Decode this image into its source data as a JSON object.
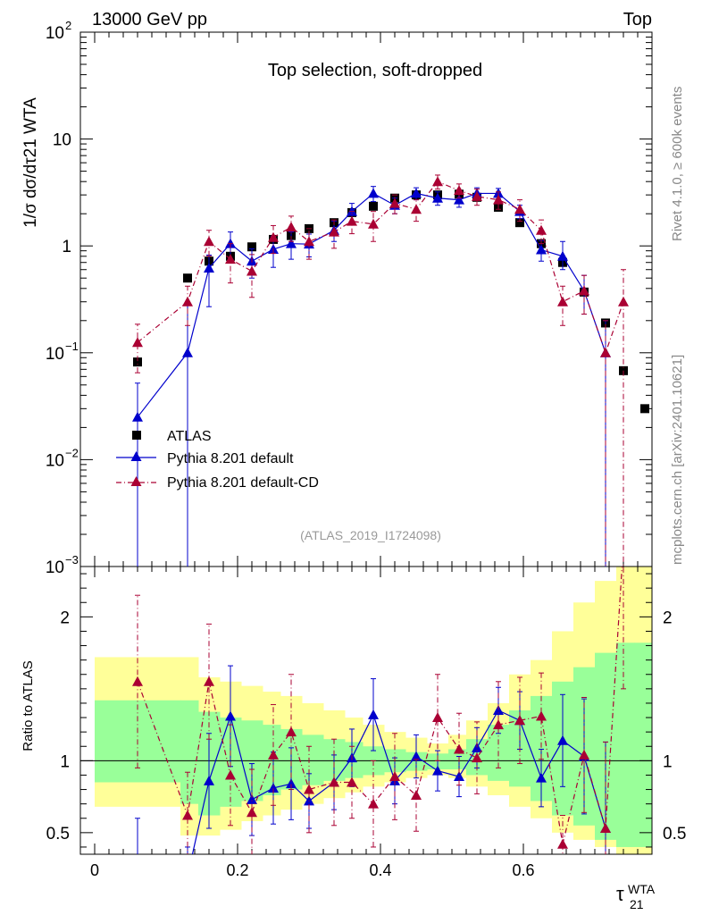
{
  "header": {
    "left": "13000 GeV pp",
    "right": "Top"
  },
  "side": {
    "rivet": "Rivet 4.1.0, ≥ 600k events",
    "mcplots": "mcplots.cern.ch [arXiv:2401.10621]"
  },
  "chart_data": {
    "type": "scatter",
    "title": "Top selection, soft-dropped",
    "analysis_id": "(ATLAS_2019_I1724098)",
    "xlabel": "τ21 WTA",
    "xlabel_base": "τ",
    "xlabel_sub": "21",
    "xlabel_sup": "WTA",
    "ylabel": "1/σ dσ/dτ21 WTA",
    "ratio_ylabel": "Ratio to ATLAS",
    "xlim": [
      -0.02,
      0.78
    ],
    "ylim": [
      0.001,
      100
    ],
    "ratio_ylim": [
      0.35,
      2.35
    ],
    "x_ticks": [
      0,
      0.2,
      0.4,
      0.6
    ],
    "x_tick_labels": [
      "0",
      "0.2",
      "0.4",
      "0.6"
    ],
    "y_ticks": [
      {
        "pos": 100,
        "base": "10",
        "exp": "2"
      },
      {
        "pos": 10,
        "base": "10",
        "exp": ""
      },
      {
        "pos": 1,
        "base": "1",
        "exp": ""
      },
      {
        "pos": 0.1,
        "base": "10",
        "exp": "−1"
      },
      {
        "pos": 0.01,
        "base": "10",
        "exp": "−2"
      },
      {
        "pos": 0.001,
        "base": "10",
        "exp": "−3"
      }
    ],
    "ratio_ticks": [
      0.5,
      1,
      2
    ],
    "ratio_tick_labels": [
      "0.5",
      "1",
      "2"
    ],
    "x": [
      0.06,
      0.13,
      0.16,
      0.19,
      0.22,
      0.25,
      0.275,
      0.3,
      0.335,
      0.36,
      0.39,
      0.42,
      0.45,
      0.48,
      0.51,
      0.535,
      0.565,
      0.595,
      0.625,
      0.655,
      0.685,
      0.715,
      0.74,
      0.77
    ],
    "bin_edges": [
      0.0,
      0.12,
      0.145,
      0.175,
      0.205,
      0.235,
      0.26,
      0.29,
      0.32,
      0.35,
      0.375,
      0.405,
      0.435,
      0.465,
      0.495,
      0.52,
      0.55,
      0.58,
      0.61,
      0.64,
      0.67,
      0.7,
      0.73,
      0.755,
      0.78
    ],
    "band_yellow": [
      [
        0.68,
        1.72
      ],
      [
        0.48,
        1.72
      ],
      [
        0.48,
        1.58
      ],
      [
        0.52,
        1.55
      ],
      [
        0.58,
        1.52
      ],
      [
        0.62,
        1.48
      ],
      [
        0.66,
        1.45
      ],
      [
        0.7,
        1.4
      ],
      [
        0.74,
        1.35
      ],
      [
        0.78,
        1.3
      ],
      [
        0.82,
        1.25
      ],
      [
        0.85,
        1.2
      ],
      [
        0.88,
        1.16
      ],
      [
        0.9,
        1.12
      ],
      [
        0.88,
        1.18
      ],
      [
        0.82,
        1.28
      ],
      [
        0.76,
        1.4
      ],
      [
        0.68,
        1.6
      ],
      [
        0.6,
        1.7
      ],
      [
        0.5,
        1.9
      ],
      [
        0.45,
        2.1
      ],
      [
        0.4,
        2.25
      ],
      [
        0.35,
        2.35
      ],
      [
        0.35,
        2.35
      ]
    ],
    "band_green": [
      [
        0.85,
        1.42
      ],
      [
        0.7,
        1.42
      ],
      [
        0.62,
        1.34
      ],
      [
        0.68,
        1.3
      ],
      [
        0.72,
        1.28
      ],
      [
        0.76,
        1.25
      ],
      [
        0.8,
        1.22
      ],
      [
        0.83,
        1.18
      ],
      [
        0.86,
        1.15
      ],
      [
        0.88,
        1.13
      ],
      [
        0.9,
        1.1
      ],
      [
        0.92,
        1.08
      ],
      [
        0.93,
        1.06
      ],
      [
        0.94,
        1.05
      ],
      [
        0.94,
        1.08
      ],
      [
        0.9,
        1.15
      ],
      [
        0.86,
        1.25
      ],
      [
        0.82,
        1.35
      ],
      [
        0.72,
        1.45
      ],
      [
        0.62,
        1.55
      ],
      [
        0.55,
        1.65
      ],
      [
        0.45,
        1.75
      ],
      [
        0.4,
        1.82
      ],
      [
        0.4,
        1.82
      ]
    ],
    "series": [
      {
        "name": "ATLAS",
        "color": "#000000",
        "marker": "square",
        "values": [
          0.082,
          0.5,
          0.72,
          0.8,
          0.98,
          1.15,
          1.25,
          1.45,
          1.65,
          2.05,
          2.35,
          2.8,
          3.0,
          3.0,
          3.05,
          2.85,
          2.3,
          1.65,
          1.05,
          0.7,
          0.37,
          0.19,
          0.068,
          0.03
        ]
      },
      {
        "name": "Pythia 8.201 default",
        "color": "#0000cc",
        "marker": "triangle",
        "line": "solid",
        "values": [
          0.025,
          0.1,
          0.62,
          1.05,
          0.72,
          0.93,
          1.05,
          1.04,
          1.4,
          2.1,
          3.1,
          2.4,
          3.1,
          2.8,
          2.7,
          3.1,
          3.1,
          2.1,
          0.92,
          0.8,
          0.38,
          0.1
        ],
        "err_lo": [
          0.025,
          0.1,
          0.35,
          0.3,
          0.22,
          0.3,
          0.3,
          0.25,
          0.3,
          0.4,
          0.5,
          0.4,
          0.4,
          0.4,
          0.4,
          0.4,
          0.35,
          0.3,
          0.2,
          0.2,
          0.15,
          0.1
        ],
        "err_hi": [
          0.027,
          0.2,
          0.2,
          0.3,
          0.22,
          0.3,
          0.3,
          0.25,
          0.3,
          0.4,
          0.5,
          0.4,
          0.4,
          0.4,
          0.4,
          0.4,
          0.35,
          0.3,
          0.2,
          0.3,
          0.15,
          0.1
        ],
        "ratio": [
          0.3,
          0.2,
          0.86,
          1.31,
          0.73,
          0.81,
          0.84,
          0.72,
          0.85,
          1.02,
          1.32,
          0.86,
          1.03,
          0.93,
          0.89,
          1.09,
          1.35,
          1.28,
          0.88,
          1.14,
          1.03,
          0.53
        ],
        "ratio_err": [
          0.3,
          0.2,
          0.33,
          0.35,
          0.25,
          0.25,
          0.25,
          0.19,
          0.19,
          0.2,
          0.25,
          0.16,
          0.15,
          0.14,
          0.14,
          0.14,
          0.16,
          0.2,
          0.2,
          0.32,
          0.4,
          0.6
        ]
      },
      {
        "name": "Pythia 8.201 default-CD",
        "color": "#aa0033",
        "marker": "triangle",
        "line": "dashdot",
        "values": [
          0.125,
          0.3,
          1.1,
          0.75,
          0.58,
          1.2,
          1.5,
          1.1,
          1.35,
          1.7,
          1.6,
          2.5,
          2.2,
          4.0,
          3.3,
          2.9,
          2.7,
          2.2,
          1.4,
          0.3,
          0.38,
          0.1,
          0.3
        ],
        "err_lo": [
          0.06,
          0.12,
          0.3,
          0.3,
          0.25,
          0.35,
          0.4,
          0.35,
          0.4,
          0.4,
          0.5,
          0.5,
          0.5,
          0.6,
          0.5,
          0.5,
          0.5,
          0.5,
          0.35,
          0.12,
          0.15,
          0.1,
          0.3
        ],
        "err_hi": [
          0.06,
          0.12,
          0.3,
          0.3,
          0.25,
          0.35,
          0.4,
          0.35,
          0.4,
          0.4,
          0.5,
          0.5,
          0.5,
          0.6,
          0.5,
          0.5,
          0.5,
          0.5,
          0.35,
          0.12,
          0.15,
          0.1,
          0.3
        ],
        "ratio": [
          1.55,
          0.62,
          1.55,
          0.9,
          0.64,
          1.04,
          1.2,
          0.8,
          0.85,
          0.85,
          0.7,
          0.89,
          0.76,
          1.3,
          1.08,
          1.02,
          1.25,
          1.28,
          1.31,
          0.42,
          1.04,
          0.53,
          2.5
        ],
        "ratio_err": [
          0.6,
          0.3,
          0.4,
          0.35,
          0.3,
          0.35,
          0.4,
          0.3,
          0.3,
          0.25,
          0.3,
          0.3,
          0.25,
          0.3,
          0.25,
          0.25,
          0.3,
          0.3,
          0.3,
          0.2,
          0.4,
          0.6,
          1.0
        ]
      }
    ]
  }
}
